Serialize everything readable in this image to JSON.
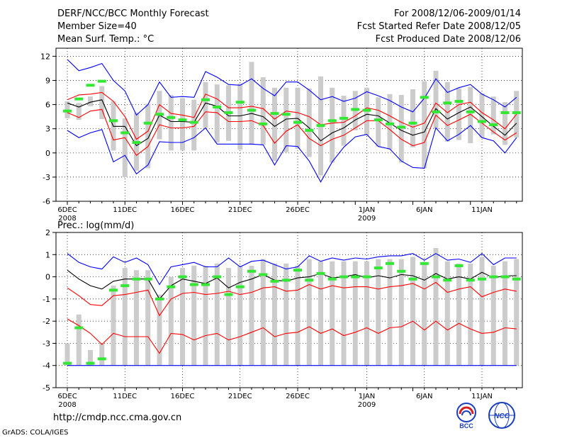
{
  "header": {
    "title": "DERF/NCC/BCC Monthly Forecast",
    "member_size": "Member Size=40",
    "variable": "Mean Surf. Temp.: °C",
    "period": "For 2008/12/06-2009/01/14",
    "started": "Fcst Started Refer Date 2008/12/05",
    "produced": "Fcst Produced Date 2008/12/06"
  },
  "footer": {
    "url": "http://cmdp.ncc.cma.gov.cn",
    "grads": "GrADS: COLA/IGES"
  },
  "logos": {
    "bcc": "BCC",
    "ncc": "NCC"
  },
  "colors": {
    "upper": "#0000ff",
    "mid": "#ff0000",
    "mean": "#000000",
    "bar": "#cccccc",
    "obs": "#33e833"
  },
  "chart_data": [
    {
      "type": "line",
      "title": "Mean Surf. Temp.: °C",
      "ylim": [
        -6,
        13
      ],
      "yticks": [
        "-6",
        "-3",
        "0",
        "3",
        "6",
        "9",
        "12"
      ],
      "ytick_values": [
        -6,
        -3,
        0,
        3,
        6,
        9,
        12
      ],
      "xticks": [
        {
          "day": 0,
          "label": "6DEC",
          "sub": "2008"
        },
        {
          "day": 5,
          "label": "11DEC",
          "sub": ""
        },
        {
          "day": 10,
          "label": "16DEC",
          "sub": ""
        },
        {
          "day": 15,
          "label": "21DEC",
          "sub": ""
        },
        {
          "day": 20,
          "label": "26DEC",
          "sub": ""
        },
        {
          "day": 26,
          "label": "1JAN",
          "sub": "2009"
        },
        {
          "day": 31,
          "label": "6JAN",
          "sub": ""
        },
        {
          "day": 36,
          "label": "11JAN",
          "sub": ""
        }
      ],
      "series": [
        {
          "name": "max",
          "color": "blue",
          "values": [
            11.6,
            10.2,
            10.6,
            11.1,
            9.0,
            7.7,
            4.7,
            6.0,
            8.8,
            6.9,
            7.0,
            6.9,
            10.1,
            9.4,
            8.5,
            8.4,
            9.2,
            8.0,
            7.1,
            8.8,
            8.8,
            7.8,
            6.6,
            7.0,
            6.4,
            6.8,
            7.6,
            7.1,
            6.5,
            5.7,
            5.1,
            6.8,
            9.2,
            7.5,
            8.1,
            8.5,
            7.3,
            6.6,
            5.7,
            6.9
          ]
        },
        {
          "name": "upper",
          "color": "red",
          "values": [
            6.6,
            7.2,
            7.3,
            7.5,
            6.4,
            4.5,
            1.7,
            2.7,
            6.0,
            4.9,
            4.7,
            4.4,
            7.3,
            6.7,
            5.6,
            5.6,
            5.8,
            5.5,
            4.2,
            5.2,
            5.0,
            4.5,
            3.5,
            3.7,
            3.8,
            4.6,
            5.6,
            5.3,
            4.6,
            3.8,
            3.2,
            3.7,
            6.2,
            5.0,
            6.0,
            6.3,
            5.0,
            4.1,
            3.0,
            4.8
          ]
        },
        {
          "name": "mean",
          "color": "black",
          "values": [
            6.2,
            5.7,
            6.3,
            6.6,
            3.3,
            3.3,
            0.9,
            1.8,
            4.7,
            3.9,
            3.9,
            3.8,
            6.2,
            5.8,
            4.6,
            4.6,
            4.9,
            4.5,
            3.3,
            4.2,
            4.3,
            3.1,
            1.5,
            2.5,
            3.1,
            4.1,
            4.8,
            4.6,
            3.7,
            2.8,
            2.2,
            2.6,
            5.5,
            4.2,
            5.0,
            5.7,
            4.5,
            3.3,
            2.2,
            3.7
          ]
        },
        {
          "name": "lower",
          "color": "red",
          "values": [
            5.0,
            4.4,
            5.2,
            5.4,
            1.6,
            1.9,
            -0.3,
            0.8,
            3.5,
            3.1,
            3.1,
            3.3,
            5.1,
            5.0,
            3.9,
            3.9,
            4.0,
            3.4,
            1.2,
            2.7,
            3.5,
            1.8,
            0.9,
            1.7,
            2.2,
            3.1,
            4.0,
            4.0,
            2.9,
            1.7,
            0.9,
            1.3,
            4.7,
            3.4,
            4.1,
            4.8,
            3.7,
            2.6,
            1.6,
            2.5
          ]
        },
        {
          "name": "min",
          "color": "blue",
          "values": [
            2.8,
            1.9,
            2.5,
            2.9,
            -1.1,
            -0.3,
            -2.6,
            -1.5,
            1.4,
            1.3,
            1.3,
            1.9,
            3.1,
            1.1,
            1.1,
            1.1,
            1.1,
            1.0,
            -1.5,
            0.9,
            0.8,
            -1.0,
            -3.6,
            -1.1,
            0.7,
            2.0,
            2.3,
            0.8,
            0.5,
            -1.0,
            -1.8,
            -1.9,
            3.1,
            1.5,
            2.3,
            3.4,
            1.9,
            1.5,
            0.0,
            1.9
          ]
        }
      ],
      "bars": {
        "lo": [
          4.3,
          4.1,
          5.8,
          4.2,
          0.3,
          -3.0,
          -2.2,
          -1.9,
          1.7,
          0.3,
          0.3,
          0.3,
          3.1,
          1.3,
          1.5,
          0.4,
          1.0,
          1.0,
          -1.0,
          0.1,
          0.5,
          -0.5,
          -2.8,
          -1.2,
          0.9,
          2.8,
          2.2,
          0.8,
          0.4,
          -1.2,
          0.7,
          -1.9,
          3.0,
          1.4,
          1.6,
          1.2,
          1.9,
          2.3,
          1.0,
          1.9
        ],
        "hi": [
          6.4,
          6.2,
          7.0,
          8.3,
          6.4,
          4.3,
          5.0,
          6.1,
          7.7,
          7.2,
          6.8,
          6.6,
          8.8,
          8.5,
          8.4,
          8.6,
          11.3,
          9.4,
          8.1,
          8.1,
          8.1,
          8.0,
          9.5,
          8.1,
          7.1,
          7.7,
          8.1,
          6.9,
          7.3,
          7.2,
          7.9,
          8.9,
          10.2,
          8.8,
          8.0,
          8.2,
          7.4,
          7.0,
          6.3,
          7.7
        ]
      },
      "obs": [
        5.2,
        6.7,
        8.4,
        8.9,
        4.0,
        2.5,
        1.3,
        3.7,
        4.8,
        4.4,
        4.1,
        3.8,
        6.6,
        5.7,
        5.0,
        6.3,
        5.3,
        3.6,
        4.9,
        4.8,
        3.8,
        2.8,
        3.4,
        4.0,
        4.3,
        5.4,
        5.3,
        4.1,
        3.6,
        3.2,
        3.7,
        6.9,
        5.1,
        6.2,
        6.4,
        5.1,
        3.9,
        3.5,
        5.0,
        5.0
      ]
    },
    {
      "type": "line",
      "title": "Prec.: log(mm/d)",
      "ylim": [
        -5,
        2
      ],
      "yticks": [
        "-5",
        "-4",
        "-3",
        "-2",
        "-1",
        "0",
        "1",
        "2"
      ],
      "ytick_values": [
        -5,
        -4,
        -3,
        -2,
        -1,
        0,
        1,
        2
      ],
      "xticks": [
        {
          "day": 0,
          "label": "6DEC",
          "sub": "2008"
        },
        {
          "day": 5,
          "label": "11DEC",
          "sub": ""
        },
        {
          "day": 10,
          "label": "16DEC",
          "sub": ""
        },
        {
          "day": 15,
          "label": "21DEC",
          "sub": ""
        },
        {
          "day": 20,
          "label": "26DEC",
          "sub": ""
        },
        {
          "day": 26,
          "label": "1JAN",
          "sub": "2009"
        },
        {
          "day": 31,
          "label": "6JAN",
          "sub": ""
        },
        {
          "day": 36,
          "label": "11JAN",
          "sub": ""
        }
      ],
      "series": [
        {
          "name": "max",
          "color": "blue",
          "values": [
            1.05,
            0.65,
            0.45,
            0.35,
            0.9,
            0.65,
            0.85,
            0.55,
            -0.35,
            0.45,
            0.55,
            0.65,
            0.45,
            0.45,
            0.85,
            0.45,
            0.7,
            0.75,
            0.55,
            0.35,
            0.45,
            0.95,
            0.7,
            0.85,
            0.75,
            0.85,
            0.8,
            0.9,
            0.95,
            0.95,
            1.05,
            0.75,
            1.05,
            0.75,
            0.8,
            0.65,
            1.05,
            0.55,
            0.85,
            0.85
          ]
        },
        {
          "name": "upper",
          "color": "red",
          "values": [
            -0.5,
            -0.85,
            -1.25,
            -1.3,
            -0.85,
            -0.8,
            -0.7,
            -0.6,
            -1.75,
            -1.0,
            -0.75,
            -0.7,
            -0.8,
            -0.75,
            -0.65,
            -0.8,
            -0.7,
            -0.5,
            -0.45,
            -0.65,
            -0.6,
            -0.35,
            -0.55,
            -0.4,
            -0.5,
            -0.45,
            -0.45,
            -0.55,
            -0.45,
            -0.4,
            -0.3,
            -0.55,
            -0.25,
            -0.7,
            -0.55,
            -0.45,
            -0.9,
            -0.7,
            -0.55,
            -0.65
          ]
        },
        {
          "name": "mean",
          "color": "black",
          "values": [
            0.3,
            -0.1,
            -0.4,
            -0.55,
            -0.2,
            -0.1,
            -0.1,
            -0.1,
            -1.0,
            -0.4,
            -0.1,
            -0.2,
            -0.3,
            -0.05,
            -0.5,
            -0.25,
            -0.1,
            0.1,
            -0.15,
            -0.2,
            -0.05,
            0.0,
            0.15,
            -0.05,
            0.0,
            0.1,
            -0.05,
            0.05,
            -0.05,
            0.1,
            0.05,
            -0.15,
            0.15,
            -0.1,
            0.0,
            -0.1,
            0.2,
            -0.05,
            0.05,
            0.05
          ]
        },
        {
          "name": "lower",
          "color": "red",
          "values": [
            -1.9,
            -2.2,
            -2.55,
            -3.05,
            -2.55,
            -2.7,
            -2.7,
            -2.7,
            -3.45,
            -2.55,
            -2.6,
            -2.85,
            -2.65,
            -2.55,
            -2.85,
            -2.7,
            -2.5,
            -2.3,
            -2.7,
            -2.55,
            -2.5,
            -2.25,
            -2.55,
            -2.35,
            -2.65,
            -2.5,
            -2.3,
            -2.55,
            -2.3,
            -2.25,
            -2.0,
            -2.4,
            -2.0,
            -2.4,
            -2.1,
            -2.35,
            -2.55,
            -2.5,
            -2.3,
            -2.35
          ]
        },
        {
          "name": "floor",
          "color": "blue",
          "values": [
            -4.0,
            -4.0,
            -4.0,
            -4.0,
            -4.0,
            -4.0,
            -4.0,
            -4.0,
            -4.0,
            -4.0,
            -4.0,
            -4.0,
            -4.0,
            -4.0,
            -4.0,
            -4.0,
            -4.0,
            -4.0,
            -4.0,
            -4.0,
            -4.0,
            -4.0,
            -4.0,
            -4.0,
            -4.0,
            -4.0,
            -4.0,
            -4.0,
            -4.0,
            -4.0,
            -4.0,
            -4.0,
            -4.0,
            -4.0,
            -4.0,
            -4.0,
            -4.0,
            -4.0,
            -4.0,
            -4.0
          ]
        }
      ],
      "bars": {
        "lo": [
          -4.0,
          -4.0,
          -4.0,
          -4.0,
          -4.0,
          -4.0,
          -4.0,
          -4.0,
          -4.0,
          -4.0,
          -4.0,
          -4.0,
          -4.0,
          -4.0,
          -4.0,
          -4.0,
          -4.0,
          -4.0,
          -4.0,
          -4.0,
          -4.0,
          -4.0,
          -4.0,
          -4.0,
          -4.0,
          -4.0,
          -4.0,
          -4.0,
          -4.0,
          -4.0,
          -4.0,
          -4.0,
          -4.0,
          -4.0,
          -4.0,
          -4.0,
          -4.0,
          -4.0,
          -4.0,
          -4.0
        ],
        "hi": [
          -3.0,
          -1.7,
          -3.3,
          -3.0,
          -0.4,
          0.4,
          0.3,
          0.3,
          -0.8,
          0.0,
          0.4,
          0.5,
          0.5,
          0.6,
          0.4,
          0.5,
          0.5,
          0.8,
          0.6,
          0.6,
          0.5,
          0.8,
          0.7,
          0.7,
          0.7,
          0.7,
          0.7,
          0.8,
          0.8,
          0.8,
          0.9,
          0.6,
          1.3,
          0.7,
          0.6,
          0.6,
          0.9,
          0.5,
          0.7,
          0.8
        ]
      },
      "obs": [
        -3.9,
        -2.3,
        -3.9,
        -3.7,
        -0.6,
        -0.4,
        -0.1,
        -0.1,
        -1.0,
        -0.45,
        0.0,
        -0.35,
        -0.35,
        0.0,
        -0.8,
        -0.45,
        0.25,
        0.1,
        -0.2,
        -0.15,
        0.3,
        -0.15,
        0.15,
        -0.1,
        0.0,
        0.0,
        0.0,
        0.4,
        0.6,
        0.25,
        -0.1,
        0.6,
        0.0,
        -0.15,
        0.5,
        -0.15,
        -0.1,
        0.0,
        0.0,
        -0.1
      ]
    }
  ]
}
